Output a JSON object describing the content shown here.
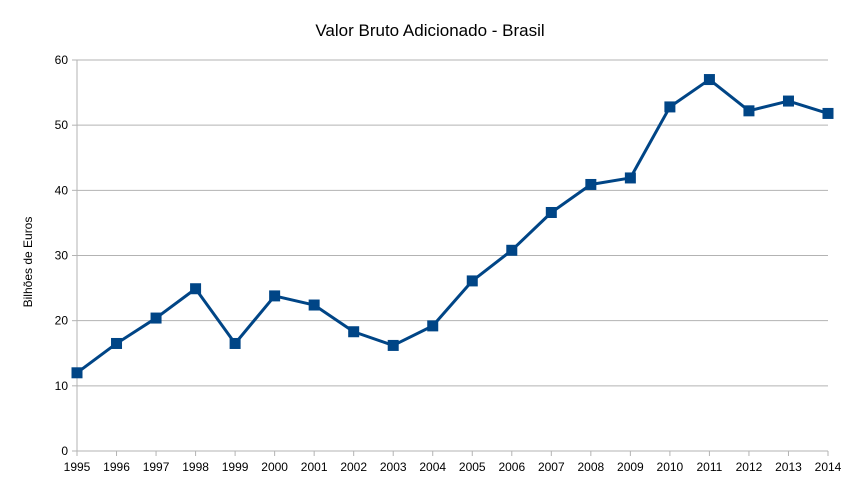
{
  "chart_data": {
    "type": "line",
    "title": "Valor Bruto Adicionado - Brasil",
    "xlabel": "",
    "ylabel": "Bilhões de Euros",
    "x": [
      "1995",
      "1996",
      "1997",
      "1998",
      "1999",
      "2000",
      "2001",
      "2002",
      "2003",
      "2004",
      "2005",
      "2006",
      "2007",
      "2008",
      "2009",
      "2010",
      "2011",
      "2012",
      "2013",
      "2014"
    ],
    "series": [
      {
        "values": [
          12.0,
          16.5,
          20.4,
          24.9,
          16.5,
          23.8,
          22.4,
          18.3,
          16.2,
          19.2,
          26.1,
          30.8,
          36.6,
          40.9,
          41.9,
          52.8,
          57.0,
          52.2,
          53.7,
          51.8
        ]
      }
    ],
    "ylim": [
      0,
      60
    ],
    "yticks": [
      0,
      10,
      20,
      30,
      40,
      50,
      60
    ],
    "grid": "horizontal",
    "legend": "none",
    "colors": {
      "line": "#004586",
      "grid": "#b3b3b3",
      "axis": "#b3b3b3"
    },
    "marker": "square"
  }
}
